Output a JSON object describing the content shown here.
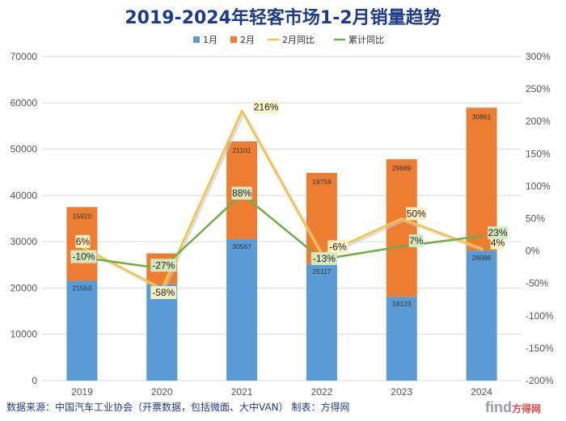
{
  "chart_data": {
    "type": "bar",
    "title": "2019-2024年轻客市场1-2月销量趋势",
    "categories": [
      "2019",
      "2020",
      "2021",
      "2022",
      "2023",
      "2024"
    ],
    "series": [
      {
        "name": "1月",
        "kind": "stacked-bar",
        "axis": "left",
        "color": "#5b9bd5",
        "values": [
          21563,
          20794,
          30567,
          25117,
          18123,
          28086
        ]
      },
      {
        "name": "2月",
        "kind": "stacked-bar",
        "axis": "left",
        "color": "#ed7d31",
        "values": [
          15920,
          6680,
          21101,
          19759,
          29689,
          30861
        ]
      },
      {
        "name": "2月同比",
        "kind": "line",
        "axis": "right",
        "color": "#f5c342",
        "values": [
          6,
          -58,
          216,
          -6,
          50,
          4
        ],
        "labels": [
          "6%",
          "-58%",
          "216%",
          "-6%",
          "50%",
          "4%"
        ]
      },
      {
        "name": "累计同比",
        "kind": "line",
        "axis": "right",
        "color": "#70ad47",
        "values": [
          -10,
          -27,
          88,
          -13,
          7,
          23
        ],
        "labels": [
          "-10%",
          "-27%",
          "88%",
          "-13%",
          "7%",
          "23%"
        ]
      }
    ],
    "y_left": {
      "min": 0,
      "max": 70000,
      "step": 10000,
      "ticks": [
        "0",
        "10000",
        "20000",
        "30000",
        "40000",
        "50000",
        "60000",
        "70000"
      ]
    },
    "y_right": {
      "min": -200,
      "max": 300,
      "step": 50,
      "ticks": [
        "-200%",
        "-150%",
        "-100%",
        "-50%",
        "0%",
        "50%",
        "100%",
        "150%",
        "200%",
        "250%",
        "300%"
      ]
    },
    "legend_position": "top-center",
    "grid": true
  },
  "footer": {
    "source": "数据来源：中国汽车工业协会（开票数据，包括微面、大中VAN）    制表：方得网"
  },
  "watermark": {
    "brand": "find",
    "cn": "方得网"
  },
  "colors": {
    "title": "#1f3a8a",
    "grid": "#d9d9d9"
  }
}
